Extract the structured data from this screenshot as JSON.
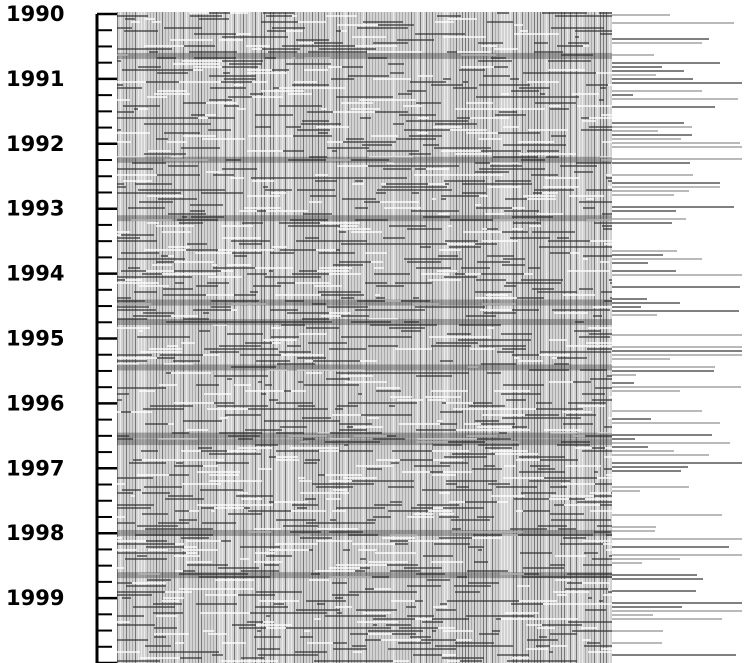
{
  "chart_data": {
    "type": "heatmap",
    "title": "",
    "xlabel": "",
    "ylabel": "",
    "y_axis": {
      "orientation": "top-to-bottom",
      "range": [
        1990,
        2000
      ],
      "tick_labels": [
        "1990",
        "1991",
        "1992",
        "1993",
        "1994",
        "1995",
        "1996",
        "1997",
        "1998",
        "1999"
      ],
      "minor_ticks_per_year": 3
    },
    "grid": false,
    "legend": "none",
    "colors": {
      "ink": "#000000",
      "dark": "#2b2b2b",
      "mid": "#8a8a8a",
      "light": "#d2d2d2",
      "paper": "#ffffff"
    }
  }
}
